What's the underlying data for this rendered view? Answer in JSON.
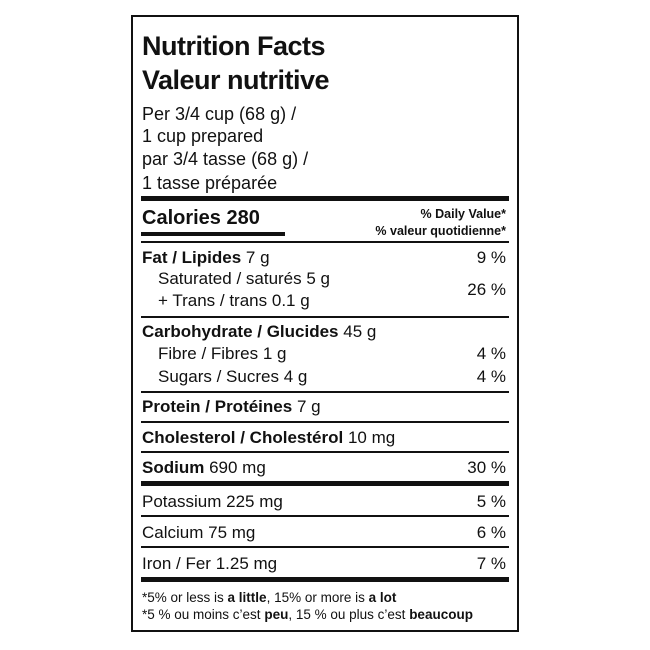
{
  "title_en": "Nutrition Facts",
  "title_fr": "Valeur nutritive",
  "serving": [
    "Per 3/4 cup (68 g) /",
    "1 cup prepared",
    "par 3/4 tasse (68 g) /",
    "1 tasse préparée"
  ],
  "calories": {
    "label": "Calories",
    "value": "280"
  },
  "dv_header": [
    "% Daily Value*",
    "% valeur quotidienne*"
  ],
  "fat": {
    "label": "Fat / Lipides",
    "amount": "7 g",
    "dv": "9 %"
  },
  "saturated": {
    "label": "Saturated / saturés",
    "amount": "5 g"
  },
  "trans": {
    "label": "+ Trans / trans",
    "amount": "0.1 g"
  },
  "sat_trans_dv": "26 %",
  "carbohydrate": {
    "label": "Carbohydrate / Glucides",
    "amount": "45 g"
  },
  "fibre": {
    "label": "Fibre / Fibres",
    "amount": "1 g",
    "dv": "4 %"
  },
  "sugars": {
    "label": "Sugars / Sucres",
    "amount": "4 g",
    "dv": "4 %"
  },
  "protein": {
    "label": "Protein / Protéines",
    "amount": "7 g"
  },
  "cholesterol": {
    "label": "Cholesterol / Cholestérol",
    "amount": "10 mg"
  },
  "sodium": {
    "label": "Sodium",
    "amount": "690 mg",
    "dv": "30 %"
  },
  "potassium": {
    "label": "Potassium",
    "amount": "225 mg",
    "dv": "5 %"
  },
  "calcium": {
    "label": "Calcium",
    "amount": "75 mg",
    "dv": "6 %"
  },
  "iron": {
    "label": "Iron / Fer",
    "amount": "1.25 mg",
    "dv": "7 %"
  },
  "footnote_en": [
    "*5% or less is",
    "a little",
    ", 15% or more is",
    "a lot"
  ],
  "footnote_fr": [
    "*5 % ou moins c’est",
    "peu",
    ", 15 % ou plus c’est",
    "beaucoup"
  ]
}
